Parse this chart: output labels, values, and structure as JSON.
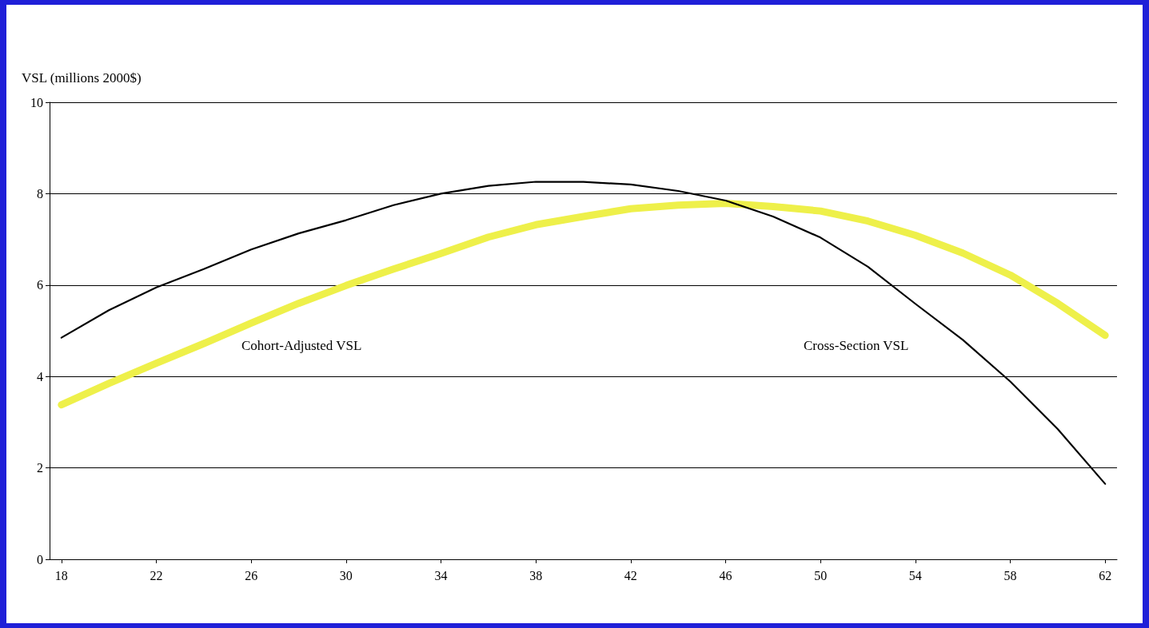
{
  "chart_data": {
    "type": "line",
    "ylabel": "VSL (millions 2000$)",
    "x": [
      18,
      20,
      22,
      24,
      26,
      28,
      30,
      32,
      34,
      36,
      38,
      40,
      42,
      44,
      46,
      48,
      50,
      52,
      54,
      56,
      58,
      60,
      62
    ],
    "series": [
      {
        "name": "Cross-Section VSL",
        "color": "#000000",
        "values": [
          4.85,
          5.45,
          5.95,
          6.35,
          6.78,
          7.13,
          7.42,
          7.75,
          8.0,
          8.17,
          8.26,
          8.26,
          8.2,
          8.06,
          7.85,
          7.5,
          7.04,
          6.4,
          5.59,
          4.8,
          3.89,
          2.85,
          1.65
        ]
      },
      {
        "name": "Cohort-Adjusted VSL",
        "color": "#eef04a",
        "values": [
          3.38,
          3.85,
          4.29,
          4.72,
          5.17,
          5.6,
          5.99,
          6.35,
          6.69,
          7.05,
          7.32,
          7.5,
          7.67,
          7.75,
          7.79,
          7.72,
          7.62,
          7.4,
          7.09,
          6.7,
          6.22,
          5.6,
          4.9
        ]
      }
    ],
    "xlim": [
      17.5,
      62.5
    ],
    "xticks": [
      18,
      22,
      26,
      30,
      34,
      38,
      42,
      46,
      50,
      54,
      58,
      62
    ],
    "ylim": [
      0,
      10
    ],
    "yticks": [
      0,
      2,
      4,
      6,
      8,
      10
    ],
    "grid": "y",
    "legend": false,
    "marker": "none",
    "line_style": "solid"
  }
}
